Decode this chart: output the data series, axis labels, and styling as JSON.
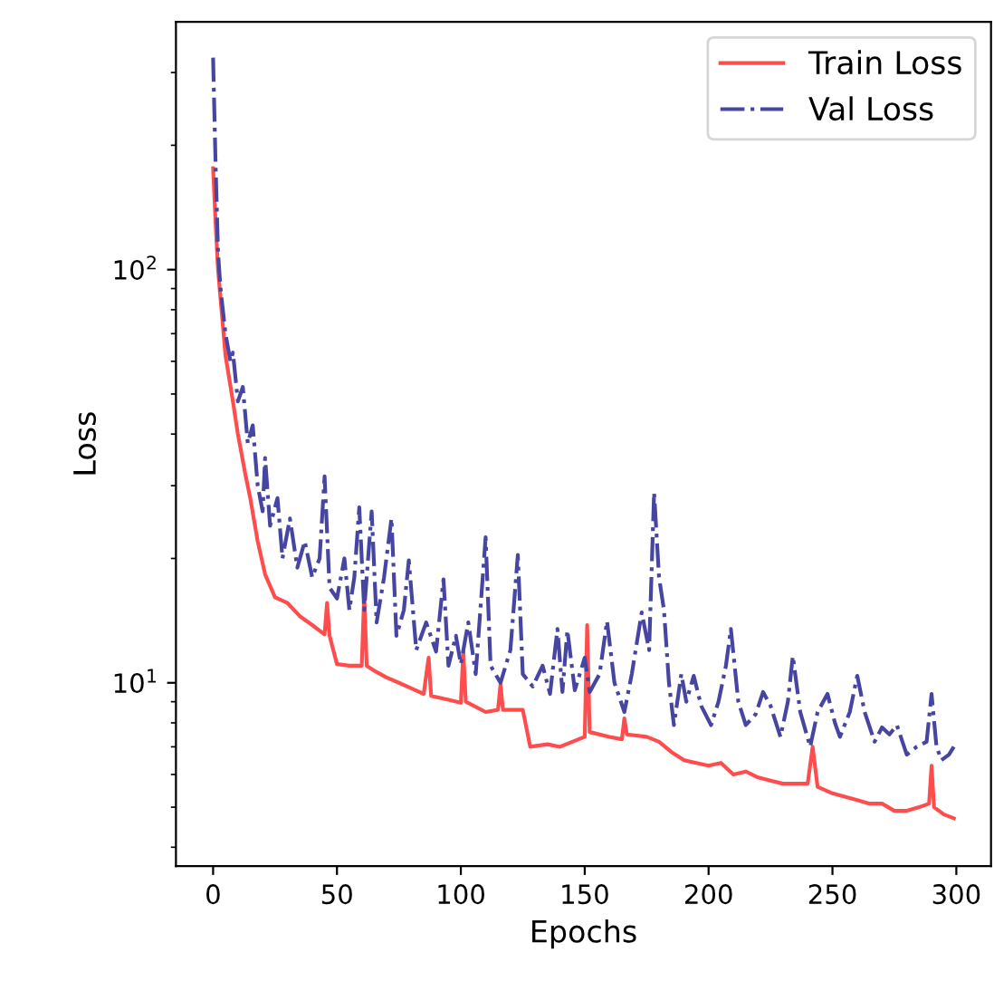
{
  "chart_data": {
    "type": "line",
    "xlabel": "Epochs",
    "ylabel": "Loss",
    "log": "y",
    "xlim": [
      -15,
      314
    ],
    "xticks": [
      0,
      50,
      100,
      150,
      200,
      250,
      300
    ],
    "ylim": [
      3.6,
      398
    ],
    "yticks": [
      {
        "value": 10,
        "label": "10$^{1}$"
      },
      {
        "value": 100,
        "label": "10$^{2}$"
      }
    ],
    "grid": false,
    "legend": "top right",
    "series": [
      {
        "name": "Train Loss",
        "color": "#ff4d4d",
        "line_style": "solid",
        "x": [
          0,
          1,
          2,
          3,
          5,
          8,
          10,
          13,
          15,
          18,
          21,
          25,
          30,
          35,
          40,
          45,
          46,
          47,
          50,
          55,
          60,
          61,
          62,
          65,
          70,
          75,
          80,
          85,
          87,
          88,
          95,
          100,
          101,
          102,
          110,
          115,
          116,
          117,
          125,
          128,
          135,
          140,
          145,
          150,
          151,
          152,
          160,
          165,
          166,
          167,
          175,
          180,
          185,
          190,
          195,
          200,
          205,
          210,
          215,
          220,
          225,
          230,
          235,
          240,
          242,
          244,
          250,
          255,
          260,
          265,
          270,
          275,
          280,
          285,
          289,
          290,
          291,
          295,
          299
        ],
        "values": [
          176,
          130,
          100,
          85,
          62,
          48,
          40,
          32,
          28,
          22,
          18.3,
          16.1,
          15.6,
          14.5,
          13.8,
          13.1,
          15.6,
          13,
          11.1,
          11,
          11,
          16.4,
          11,
          10.7,
          10.3,
          10,
          9.7,
          9.4,
          11.5,
          9.3,
          9.1,
          8.95,
          11.9,
          9,
          8.5,
          8.6,
          9.9,
          8.6,
          8.6,
          7.0,
          7.1,
          7.0,
          7.2,
          7.4,
          13.8,
          7.6,
          7.4,
          7.3,
          8.2,
          7.5,
          7.4,
          7.2,
          6.8,
          6.5,
          6.4,
          6.3,
          6.4,
          6.0,
          6.1,
          5.9,
          5.8,
          5.7,
          5.7,
          5.7,
          7.0,
          5.6,
          5.4,
          5.3,
          5.2,
          5.1,
          5.1,
          4.9,
          4.9,
          5.0,
          5.1,
          6.3,
          5.0,
          4.8,
          4.7
        ]
      },
      {
        "name": "Val Loss",
        "color": "#4646a2",
        "line_style": "dashdot",
        "x": [
          0,
          1,
          2,
          3,
          5,
          7,
          8,
          10,
          12,
          14,
          16,
          18,
          20,
          21,
          23,
          26,
          28,
          31,
          34,
          37,
          40,
          43,
          45,
          47,
          50,
          53,
          55,
          57,
          59,
          61,
          64,
          66,
          69,
          72,
          74,
          77,
          79,
          82,
          86,
          90,
          93,
          95,
          98,
          100,
          103,
          106,
          110,
          112,
          116,
          120,
          123,
          125,
          129,
          133,
          136,
          139,
          141,
          143,
          146,
          150,
          152,
          156,
          159,
          162,
          166,
          169,
          173,
          176,
          178,
          180,
          182,
          184,
          186,
          189,
          191,
          194,
          197,
          201,
          204,
          207,
          209,
          212,
          215,
          219,
          222,
          225,
          229,
          232,
          234,
          237,
          241,
          244,
          248,
          251,
          253,
          257,
          260,
          263,
          267,
          270,
          273,
          276,
          280,
          284,
          288,
          290,
          292,
          294,
          297,
          299
        ],
        "values": [
          326,
          180,
          110,
          90,
          70,
          60,
          63,
          48,
          52,
          38,
          42,
          30,
          26,
          35,
          24,
          28,
          20,
          25,
          19,
          22,
          18,
          20,
          31.6,
          17,
          16,
          20,
          15,
          18,
          26.6,
          15,
          26,
          14,
          18,
          25,
          13,
          15,
          19.8,
          12,
          14,
          11.9,
          17.8,
          11,
          13,
          11.1,
          14,
          10.5,
          22.5,
          11,
          10,
          12,
          20.4,
          10.5,
          9.8,
          11,
          9.4,
          13.5,
          9.5,
          13.4,
          9.6,
          11.5,
          9.5,
          10.5,
          14.1,
          10,
          8.5,
          10.5,
          14.8,
          12,
          28.9,
          18,
          15,
          10,
          7.9,
          10.5,
          9,
          10.4,
          8.8,
          7.9,
          9,
          11,
          13.5,
          9,
          7.9,
          8.4,
          9.5,
          8.8,
          7.4,
          9,
          11.6,
          8.5,
          7.0,
          8.5,
          9.4,
          8,
          7.4,
          8.5,
          10.4,
          8.5,
          7.2,
          7.8,
          7.5,
          7.9,
          6.7,
          7.0,
          7.2,
          9.4,
          7.0,
          6.5,
          6.7,
          7.0
        ]
      }
    ]
  }
}
